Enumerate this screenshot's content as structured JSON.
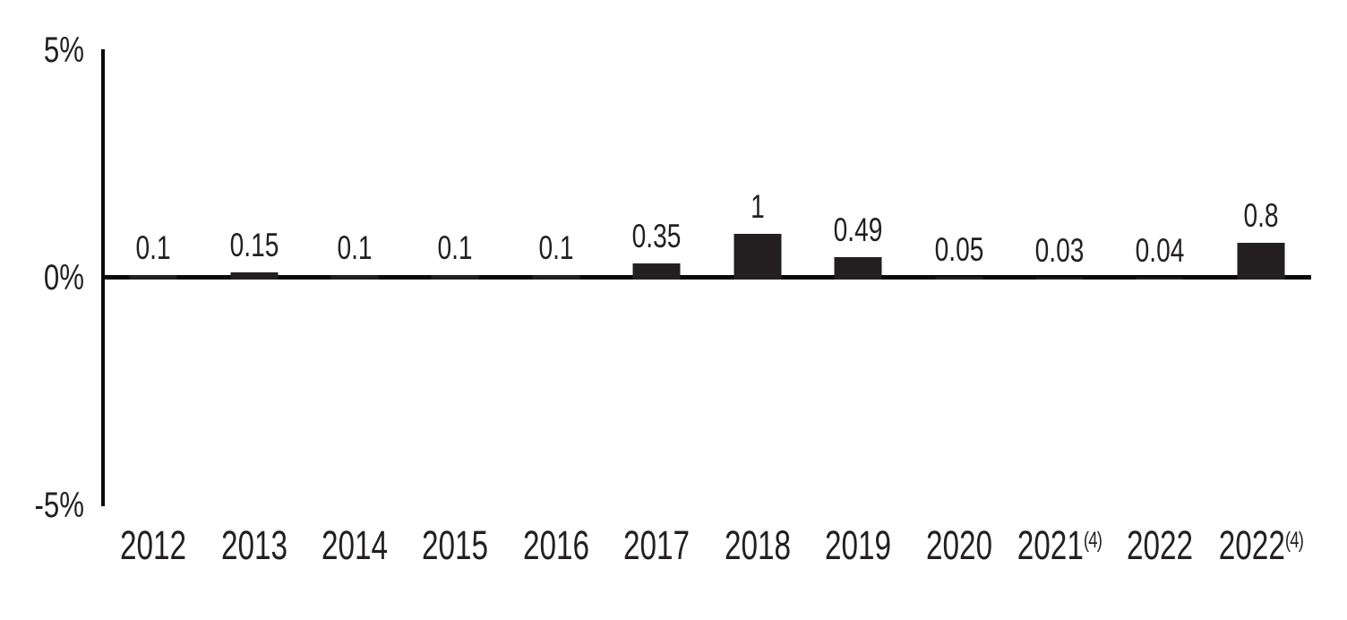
{
  "chart_data": {
    "type": "bar",
    "title": "",
    "xlabel": "",
    "ylabel": "",
    "categories": [
      "2012",
      "2013",
      "2014",
      "2015",
      "2016",
      "2017",
      "2018",
      "2019",
      "2020",
      "2021(4)",
      "2022",
      "2022(4)"
    ],
    "categories_rich": [
      {
        "text": "2012",
        "sup": ""
      },
      {
        "text": "2013",
        "sup": ""
      },
      {
        "text": "2014",
        "sup": ""
      },
      {
        "text": "2015",
        "sup": ""
      },
      {
        "text": "2016",
        "sup": ""
      },
      {
        "text": "2017",
        "sup": ""
      },
      {
        "text": "2018",
        "sup": ""
      },
      {
        "text": "2019",
        "sup": ""
      },
      {
        "text": "2020",
        "sup": ""
      },
      {
        "text": "2021",
        "sup": "(4)"
      },
      {
        "text": "2022",
        "sup": ""
      },
      {
        "text": "2022",
        "sup": "(4)"
      }
    ],
    "values": [
      0.1,
      0.15,
      0.1,
      0.1,
      0.1,
      0.35,
      1,
      0.49,
      0.05,
      0.03,
      0.04,
      0.8
    ],
    "value_labels": [
      "0.1",
      "0.15",
      "0.1",
      "0.1",
      "0.1",
      "0.35",
      "1",
      "0.49",
      "0.05",
      "0.03",
      "0.04",
      "0.8"
    ],
    "ylim": [
      -5,
      5
    ],
    "yticks": [
      {
        "value": 5,
        "label": "5%"
      },
      {
        "value": 0,
        "label": "0%"
      },
      {
        "value": -5,
        "label": "-5%"
      }
    ],
    "grid": false,
    "legend": false,
    "bar_color": "#231f20",
    "axis_color": "#0a0a0a"
  }
}
